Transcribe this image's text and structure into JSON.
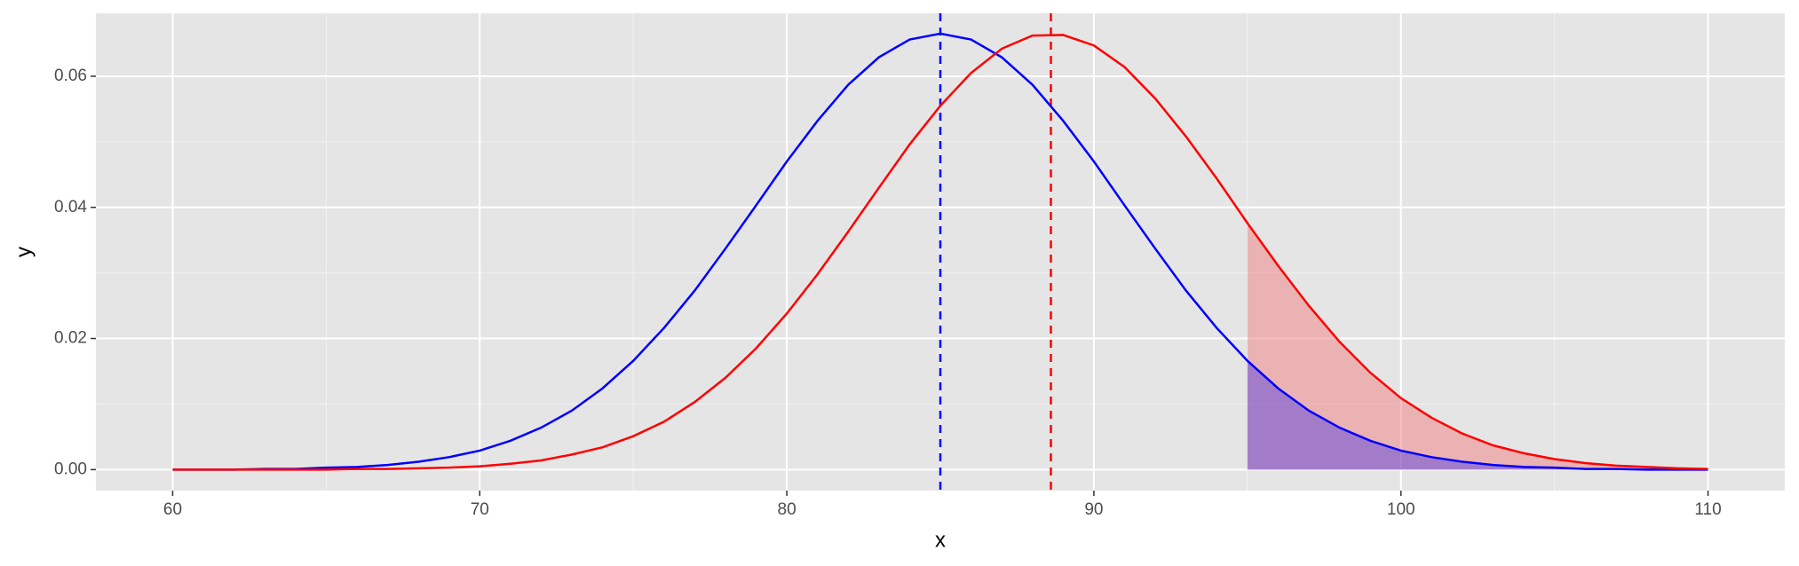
{
  "chart_data": {
    "type": "line",
    "x_label": "x",
    "y_label": "y",
    "x": [
      60,
      61,
      62,
      63,
      64,
      65,
      66,
      67,
      68,
      69,
      70,
      71,
      72,
      73,
      74,
      75,
      76,
      77,
      78,
      79,
      80,
      81,
      82,
      83,
      84,
      85,
      86,
      87,
      88,
      89,
      90,
      91,
      92,
      93,
      94,
      95,
      96,
      97,
      98,
      99,
      100,
      101,
      102,
      103,
      104,
      105,
      106,
      107,
      108,
      109,
      110
    ],
    "series": [
      {
        "color": "#0000ff",
        "fill": "#0000ff",
        "values": [
          0,
          0,
          0,
          0.0001,
          0.0001,
          0.0003,
          0.0004,
          0.0007,
          0.0012,
          0.0019,
          0.0029,
          0.0044,
          0.0064,
          0.009,
          0.0124,
          0.0166,
          0.0216,
          0.0273,
          0.0337,
          0.0403,
          0.047,
          0.0532,
          0.0587,
          0.0629,
          0.0656,
          0.0665,
          0.0656,
          0.0629,
          0.0587,
          0.0532,
          0.047,
          0.0403,
          0.0337,
          0.0273,
          0.0216,
          0.0166,
          0.0124,
          0.009,
          0.0064,
          0.0044,
          0.0029,
          0.0019,
          0.0012,
          0.0007,
          0.0004,
          0.0003,
          0.0001,
          0.0001,
          0,
          0,
          0
        ],
        "mean_line": 85
      },
      {
        "color": "#ff0000",
        "fill": "#f08080",
        "values": [
          0,
          0,
          0,
          0,
          0,
          0,
          0.0001,
          0.0001,
          0.0002,
          0.0003,
          0.0005,
          0.0009,
          0.0014,
          0.0023,
          0.0034,
          0.0051,
          0.0073,
          0.0103,
          0.014,
          0.0185,
          0.0238,
          0.0298,
          0.0363,
          0.043,
          0.0496,
          0.0555,
          0.0605,
          0.0642,
          0.0662,
          0.0663,
          0.0647,
          0.0614,
          0.0566,
          0.0508,
          0.0444,
          0.0376,
          0.0311,
          0.025,
          0.0195,
          0.0148,
          0.0109,
          0.0079,
          0.0055,
          0.0037,
          0.0025,
          0.0016,
          0.001,
          0.0006,
          0.0004,
          0.0002,
          0.0001
        ],
        "mean_line": 88.6
      }
    ],
    "shade_from": 95,
    "xlim": [
      57.5,
      112.5
    ],
    "xticks": [
      60,
      70,
      80,
      90,
      100,
      110
    ],
    "ylim": [
      -0.0032,
      0.0696
    ],
    "yticks": [
      {
        "value": 0,
        "label": "0.00"
      },
      0.02,
      0.04,
      0.06
    ],
    "grid": true
  }
}
